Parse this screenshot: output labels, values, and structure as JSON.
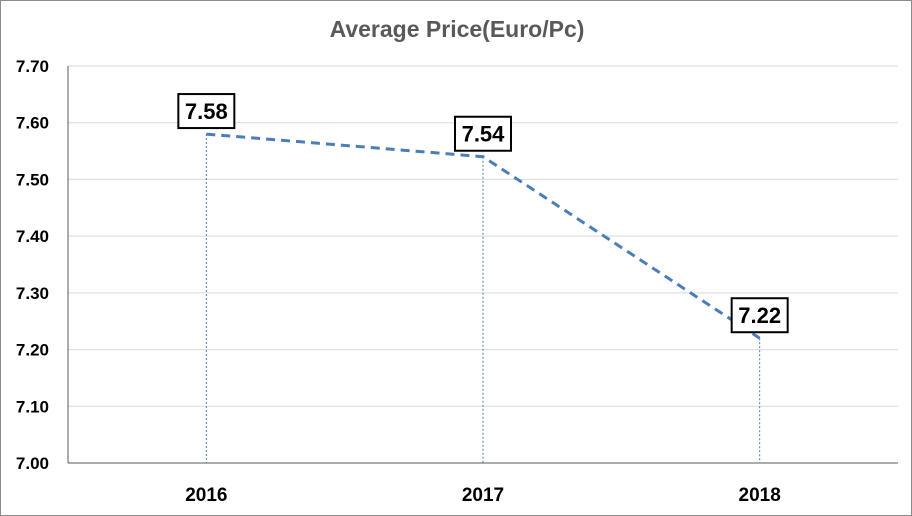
{
  "chart_data": {
    "type": "line",
    "title": "Average Price(Euro/Pc)",
    "categories": [
      "2016",
      "2017",
      "2018"
    ],
    "series": [
      {
        "values": [
          7.58,
          7.54,
          7.22
        ]
      }
    ],
    "data_labels": [
      "7.58",
      "7.54",
      "7.22"
    ],
    "y_ticks": [
      "7.00",
      "7.10",
      "7.20",
      "7.30",
      "7.40",
      "7.50",
      "7.60",
      "7.70"
    ],
    "ylim": [
      7.0,
      7.7
    ],
    "grid": true,
    "legend": "none",
    "line_style": "dashed",
    "drop_lines": true,
    "series_color": "#4a7ebb"
  }
}
